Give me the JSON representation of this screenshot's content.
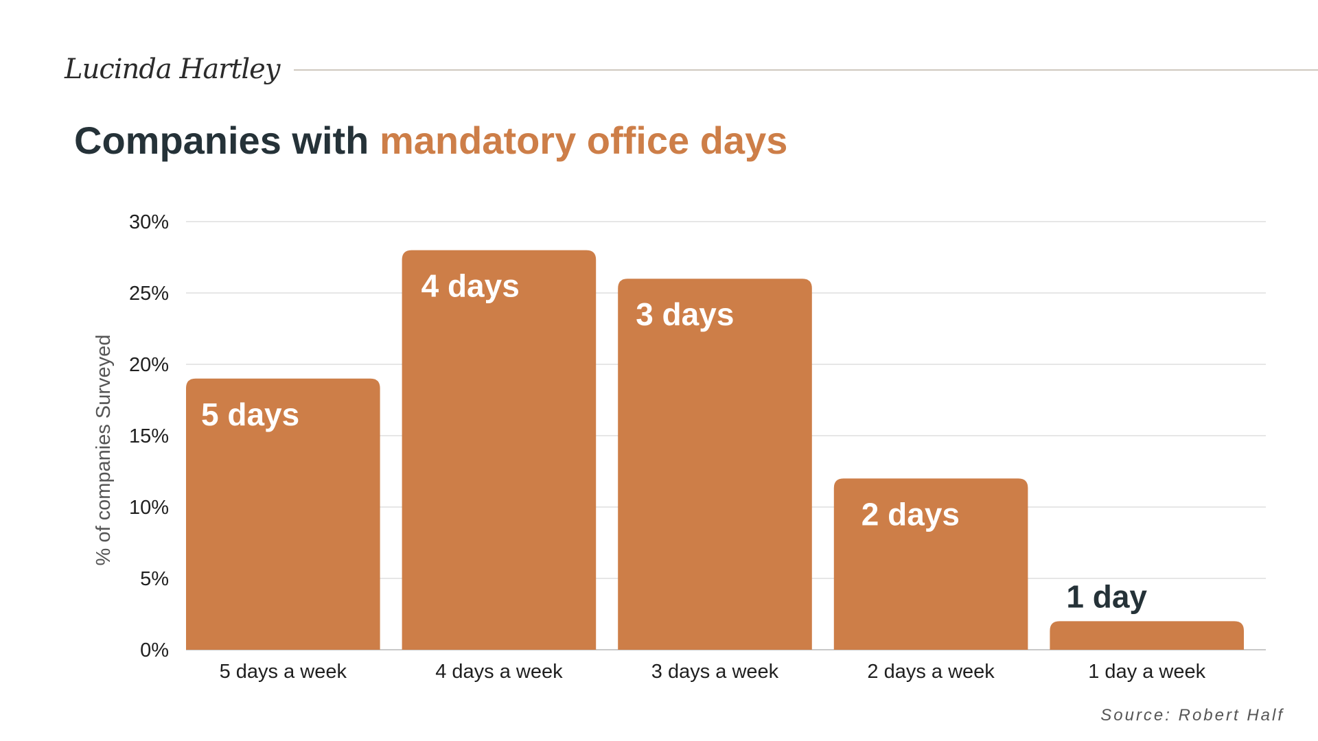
{
  "header": {
    "signature": "Lucinda Hartley",
    "title_plain": "Companies with",
    "title_accent": "mandatory office days"
  },
  "colors": {
    "bar": "#cd7e48",
    "title_dark": "#253238",
    "grid": "#dedede",
    "axis_text": "#1f1f1f",
    "bar_label_light": "#ffffff",
    "bar_label_dark": "#253238"
  },
  "chart_data": {
    "type": "bar",
    "title": "Companies with mandatory office days",
    "categories": [
      "5 days a week",
      "4 days a week",
      "3 days a week",
      "2 days a week",
      "1 day a week"
    ],
    "values": [
      19,
      28,
      26,
      12,
      2
    ],
    "bar_labels": [
      "5 days",
      "4 days",
      "3 days",
      "2 days",
      "1 day"
    ],
    "value_unit": "%",
    "xlabel": "",
    "ylabel": "% of companies Surveyed",
    "ylim": [
      0,
      30
    ],
    "yticks": [
      0,
      5,
      10,
      15,
      20,
      25,
      30
    ],
    "ytick_labels": [
      "0%",
      "5%",
      "10%",
      "15%",
      "20%",
      "25%",
      "30%"
    ],
    "grid": true,
    "legend": "none"
  },
  "footer": {
    "source": "Source: Robert Half"
  }
}
